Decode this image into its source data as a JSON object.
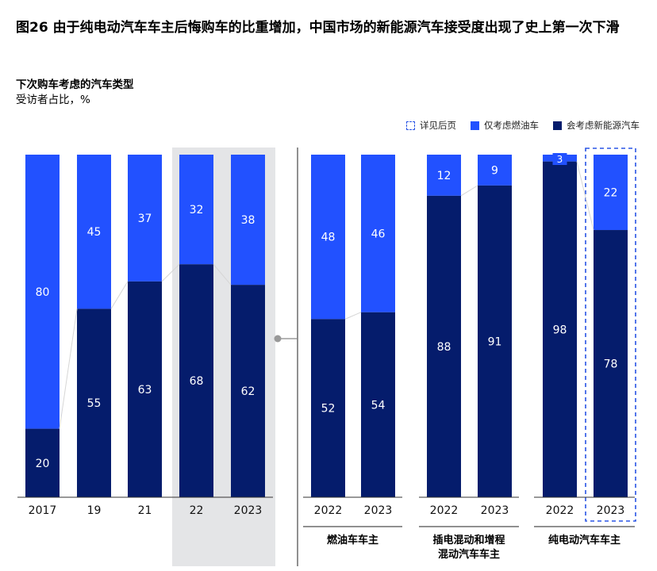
{
  "title": "图26 由于纯电动汽车车主后悔购车的比重增加，中国市场的新能源汽车接受度出现了史上第一次下滑",
  "subtitle": "下次购车考虑的汽车类型",
  "unit": "受访者占比，%",
  "legend": {
    "dashed": "详见后页",
    "light": "仅考虑燃油车",
    "dark": "会考虑新能源汽车"
  },
  "colors": {
    "light": "#2251ff",
    "dark": "#051c6c",
    "highlight": "#e4e5e7",
    "dashed": "#2a55e5"
  },
  "chart_data": {
    "type": "bar",
    "stacked": true,
    "ylim": [
      0,
      100
    ],
    "series_names": [
      "会考虑新能源汽车",
      "仅考虑燃油车"
    ],
    "groups": [
      {
        "label": "",
        "categories": [
          "2017",
          "19",
          "21",
          "22",
          "2023"
        ],
        "new_energy": [
          20,
          55,
          63,
          68,
          62
        ],
        "ice_only": [
          80,
          45,
          37,
          32,
          38
        ],
        "highlighted": [
          "22",
          "2023"
        ]
      },
      {
        "label": "燃油车车主",
        "categories": [
          "2022",
          "2023"
        ],
        "new_energy": [
          52,
          54
        ],
        "ice_only": [
          48,
          46
        ]
      },
      {
        "label": "插电混动和增程混动汽车车主",
        "label_lines": [
          "插电混动和增程",
          "混动汽车车主"
        ],
        "categories": [
          "2022",
          "2023"
        ],
        "new_energy": [
          88,
          91
        ],
        "ice_only": [
          12,
          9
        ]
      },
      {
        "label": "纯电动汽车车主",
        "categories": [
          "2022",
          "2023"
        ],
        "new_energy": [
          98,
          78
        ],
        "ice_only": [
          3,
          22
        ],
        "dashed": [
          "2023"
        ]
      }
    ]
  }
}
